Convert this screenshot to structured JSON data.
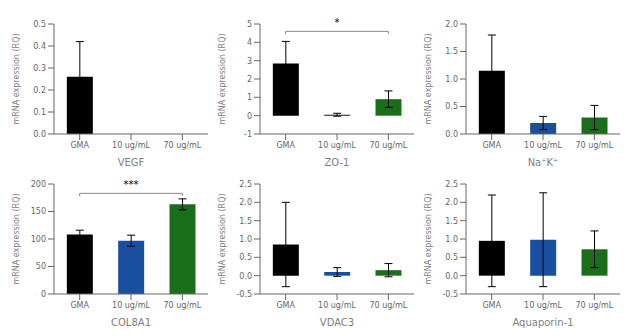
{
  "chart_data": [
    {
      "type": "bar",
      "xlabel": "VEGF",
      "ylabel": "mRNA expression (RQ)",
      "categories": [
        "GMA",
        "10 ug/mL",
        "70 ug/mL"
      ],
      "values": [
        0.26,
        0.0,
        0.0
      ],
      "errors": [
        0.16,
        0.0,
        0.0
      ],
      "colors": [
        "#000000",
        "#000000",
        "#000000"
      ],
      "ylim": [
        0,
        0.5
      ],
      "yticks": [
        {
          "value": 0,
          "label": "0.0"
        },
        0.1,
        0.2,
        0.3,
        0.4,
        0.5
      ],
      "annotations": [],
      "grid": false
    },
    {
      "type": "bar",
      "xlabel": "ZO-1",
      "ylabel": "mRNA expression (RQ)",
      "categories": [
        "GMA",
        "10 ug/mL",
        "70 ug/mL"
      ],
      "values": [
        2.85,
        0.05,
        0.9
      ],
      "errors": [
        1.2,
        0.08,
        0.45
      ],
      "colors": [
        "#000000",
        "#000000",
        "#1a6e1a"
      ],
      "ylim": [
        -1,
        5
      ],
      "yticks": [
        -1,
        0,
        1,
        2,
        3,
        4,
        5
      ],
      "annotations": [
        {
          "text": "*",
          "x1": "GMA",
          "x2": "70 ug/mL",
          "y": 4.6
        }
      ],
      "grid": false
    },
    {
      "type": "bar",
      "xlabel": "Na⁺K⁺",
      "ylabel": "mRNA expression (RQ)",
      "categories": [
        "GMA",
        "10 ug/mL",
        "70 ug/mL"
      ],
      "values": [
        1.15,
        0.2,
        0.3
      ],
      "errors": [
        0.65,
        0.12,
        0.22
      ],
      "colors": [
        "#000000",
        "#1a4fa0",
        "#1a6e1a"
      ],
      "ylim": [
        0,
        2.0
      ],
      "yticks": [
        {
          "value": 0,
          "label": "0.0"
        },
        0.5,
        {
          "value": 1,
          "label": "1.0"
        },
        1.5,
        {
          "value": 2,
          "label": "2.0"
        }
      ],
      "annotations": [],
      "grid": false
    },
    {
      "type": "bar",
      "xlabel": "COL8A1",
      "ylabel": "mRNA expression (RQ)",
      "categories": [
        "GMA",
        "10 ug/mL",
        "70 ug/mL"
      ],
      "values": [
        108,
        97,
        163
      ],
      "errors": [
        8,
        10,
        10
      ],
      "colors": [
        "#000000",
        "#1a4fa0",
        "#1a6e1a"
      ],
      "ylim": [
        0,
        200
      ],
      "yticks": [
        0,
        50,
        100,
        150,
        200
      ],
      "annotations": [
        {
          "text": "***",
          "x1": "GMA",
          "x2": "70 ug/mL",
          "y": 183
        }
      ],
      "grid": false
    },
    {
      "type": "bar",
      "xlabel": "VDAC3",
      "ylabel": "mRNA expression (RQ)",
      "categories": [
        "GMA",
        "10 ug/mL",
        "70 ug/mL"
      ],
      "values": [
        0.85,
        0.1,
        0.15
      ],
      "errors": [
        1.15,
        0.12,
        0.18
      ],
      "colors": [
        "#000000",
        "#1a4fa0",
        "#1a6e1a"
      ],
      "ylim": [
        -0.5,
        2.5
      ],
      "yticks": [
        -0.5,
        {
          "value": 0,
          "label": "0.0"
        },
        0.5,
        {
          "value": 1,
          "label": "1.0"
        },
        1.5,
        {
          "value": 2,
          "label": "2.0"
        },
        2.5
      ],
      "annotations": [],
      "grid": false
    },
    {
      "type": "bar",
      "xlabel": "Aquaporin-1",
      "ylabel": "mRNA expression (RQ)",
      "categories": [
        "GMA",
        "10 ug/mL",
        "70 ug/mL"
      ],
      "values": [
        0.95,
        0.98,
        0.72
      ],
      "errors": [
        1.25,
        1.28,
        0.5
      ],
      "colors": [
        "#000000",
        "#1a4fa0",
        "#1a6e1a"
      ],
      "ylim": [
        -0.5,
        2.5
      ],
      "yticks": [
        -0.5,
        {
          "value": 0,
          "label": "0.0"
        },
        0.5,
        {
          "value": 1,
          "label": "1.0"
        },
        1.5,
        {
          "value": 2,
          "label": "2.0"
        },
        2.5
      ],
      "annotations": [],
      "grid": false
    }
  ]
}
